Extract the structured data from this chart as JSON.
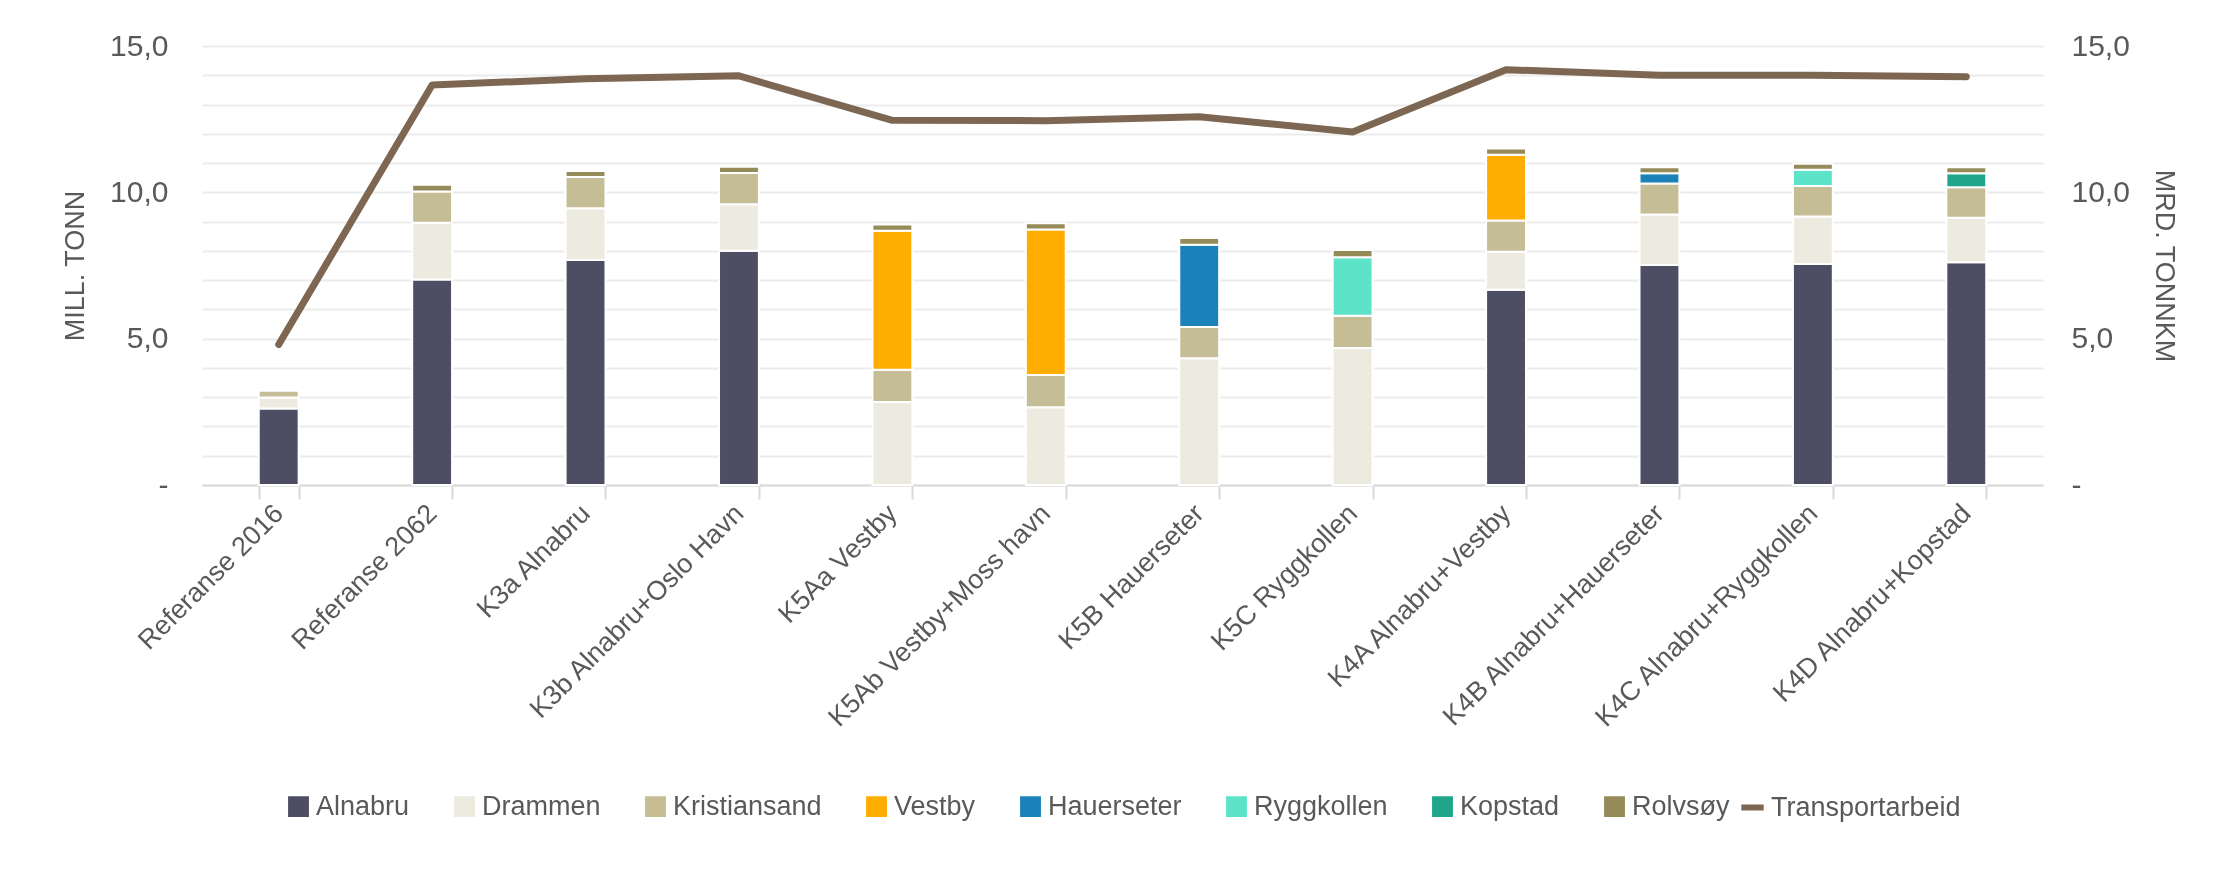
{
  "chart_data": {
    "type": "bar",
    "stacked": true,
    "ylabel": "MILL. TONN",
    "y2label": "MRD. TONNKM",
    "categories": [
      "Referanse 2016",
      "Referanse 2062",
      "K3a Alnabru",
      "K3b Alnabru+Oslo Havn",
      "K5Aa Vestby",
      "K5Ab Vestby+Moss havn",
      "K5B Hauerseter",
      "K5C Ryggkollen",
      "K4A Alnabru+Vestby",
      "K4B Alnabru+Hauerseter",
      "K4C Alnabru+Ryggkollen",
      "K4D Alnabru+Kopstad"
    ],
    "series": [
      {
        "name": "Alnabru",
        "color": "#4d4e63",
        "values": [
          2.61,
          7.02,
          7.69,
          8.0,
          null,
          null,
          null,
          null,
          6.67,
          7.52,
          7.55,
          7.61
        ]
      },
      {
        "name": "Drammen",
        "color": "#edebe0",
        "values": [
          0.38,
          1.94,
          1.77,
          1.59,
          2.84,
          2.66,
          4.33,
          4.68,
          1.3,
          1.72,
          1.62,
          1.52
        ]
      },
      {
        "name": "Kristiansand",
        "color": "#c5bd96",
        "values": [
          0.23,
          1.07,
          1.06,
          1.07,
          1.1,
          1.1,
          1.07,
          1.1,
          1.07,
          1.06,
          1.05,
          1.04
        ]
      },
      {
        "name": "Vestby",
        "color": "#ffad00",
        "values": [
          null,
          null,
          null,
          null,
          4.75,
          4.97,
          null,
          null,
          2.24,
          null,
          null,
          null
        ]
      },
      {
        "name": "Hauerseter",
        "color": "#1a82b8",
        "values": [
          null,
          null,
          null,
          null,
          null,
          null,
          2.81,
          null,
          null,
          0.35,
          null,
          null
        ]
      },
      {
        "name": "Ryggkollen",
        "color": "#5de3c8",
        "values": [
          null,
          null,
          null,
          null,
          null,
          null,
          null,
          2.0,
          null,
          null,
          0.55,
          null
        ]
      },
      {
        "name": "Kopstad",
        "color": "#1fa68a",
        "values": [
          null,
          null,
          null,
          null,
          null,
          null,
          null,
          null,
          null,
          null,
          null,
          0.48
        ]
      },
      {
        "name": "Rolvsøy",
        "color": "#958b58",
        "values": [
          null,
          0.23,
          0.21,
          0.21,
          0.21,
          0.21,
          0.23,
          0.25,
          0.22,
          0.21,
          0.21,
          0.21
        ]
      },
      {
        "name": "Transportarbeid",
        "type": "line",
        "axis": "y2",
        "color": "#7d6652",
        "values": [
          4.8,
          13.67,
          13.88,
          13.98,
          12.46,
          12.45,
          12.58,
          12.06,
          14.19,
          14.0,
          14.0,
          13.95
        ]
      }
    ],
    "ylim": [
      0,
      15
    ],
    "yticks": [
      {
        "value": 0,
        "label": "-"
      },
      {
        "value": 1,
        "label": null
      },
      {
        "value": 2,
        "label": null
      },
      {
        "value": 3,
        "label": null
      },
      {
        "value": 4,
        "label": null
      },
      {
        "value": 5,
        "label": "5,0"
      },
      {
        "value": 6,
        "label": null
      },
      {
        "value": 7,
        "label": null
      },
      {
        "value": 8,
        "label": null
      },
      {
        "value": 9,
        "label": null
      },
      {
        "value": 10,
        "label": "10,0"
      },
      {
        "value": 11,
        "label": null
      },
      {
        "value": 12,
        "label": null
      },
      {
        "value": 13,
        "label": null
      },
      {
        "value": 14,
        "label": null
      },
      {
        "value": 15,
        "label": "15,0"
      }
    ],
    "y2lim": [
      0,
      15
    ],
    "y2ticks": [
      {
        "value": 0,
        "label": "-"
      },
      {
        "value": 5,
        "label": "5,0"
      },
      {
        "value": 10,
        "label": "10,0"
      },
      {
        "value": 15,
        "label": "15,0"
      }
    ],
    "grid": "y",
    "legend": "bottom"
  }
}
